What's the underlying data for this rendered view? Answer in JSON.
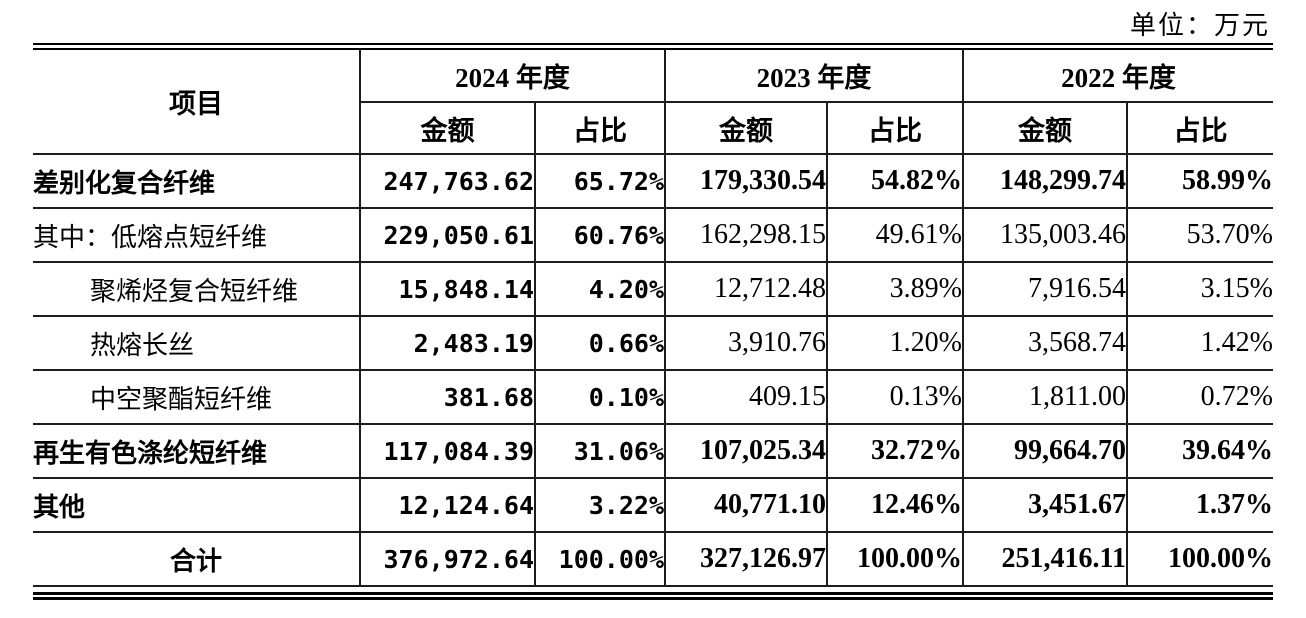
{
  "unit_label": "单位：万元",
  "table": {
    "item_header": "项目",
    "year_groups": [
      {
        "year": "2024 年度",
        "amount_header": "金额",
        "ratio_header": "占比"
      },
      {
        "year": "2023 年度",
        "amount_header": "金额",
        "ratio_header": "占比"
      },
      {
        "year": "2022 年度",
        "amount_header": "金额",
        "ratio_header": "占比"
      }
    ],
    "rows": [
      {
        "label": "差别化复合纤维",
        "indent": false,
        "bold": true,
        "center": false,
        "cells": [
          "247,763.62",
          "65.72%",
          "179,330.54",
          "54.82%",
          "148,299.74",
          "58.99%"
        ]
      },
      {
        "label": "其中：低熔点短纤维",
        "indent": false,
        "bold": false,
        "center": false,
        "cells": [
          "229,050.61",
          "60.76%",
          "162,298.15",
          "49.61%",
          "135,003.46",
          "53.70%"
        ]
      },
      {
        "label": "聚烯烃复合短纤维",
        "indent": true,
        "bold": false,
        "center": false,
        "cells": [
          "15,848.14",
          "4.20%",
          "12,712.48",
          "3.89%",
          "7,916.54",
          "3.15%"
        ]
      },
      {
        "label": "热熔长丝",
        "indent": true,
        "bold": false,
        "center": false,
        "cells": [
          "2,483.19",
          "0.66%",
          "3,910.76",
          "1.20%",
          "3,568.74",
          "1.42%"
        ]
      },
      {
        "label": "中空聚酯短纤维",
        "indent": true,
        "bold": false,
        "center": false,
        "cells": [
          "381.68",
          "0.10%",
          "409.15",
          "0.13%",
          "1,811.00",
          "0.72%"
        ]
      },
      {
        "label": "再生有色涤纶短纤维",
        "indent": false,
        "bold": true,
        "center": false,
        "cells": [
          "117,084.39",
          "31.06%",
          "107,025.34",
          "32.72%",
          "99,664.70",
          "39.64%"
        ]
      },
      {
        "label": "其他",
        "indent": false,
        "bold": true,
        "center": false,
        "cells": [
          "12,124.64",
          "3.22%",
          "40,771.10",
          "12.46%",
          "3,451.67",
          "1.37%"
        ]
      },
      {
        "label": "合计",
        "indent": false,
        "bold": true,
        "center": true,
        "cells": [
          "376,972.64",
          "100.00%",
          "327,126.97",
          "100.00%",
          "251,416.11",
          "100.00%"
        ]
      }
    ]
  }
}
